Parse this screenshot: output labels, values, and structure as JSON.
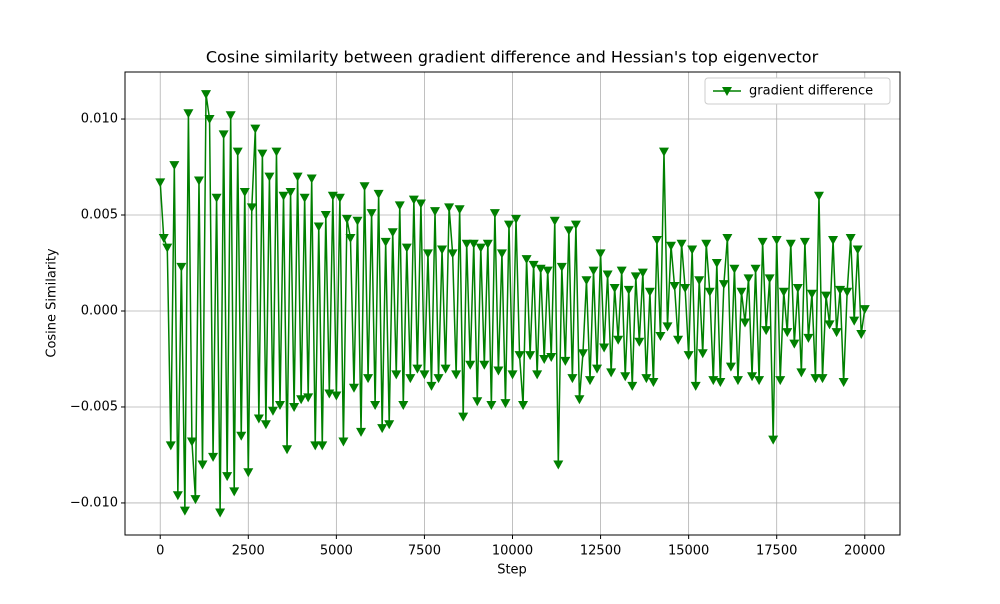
{
  "chart_data": {
    "type": "line",
    "title": "Cosine similarity between gradient difference and Hessian's top eigenvector",
    "x_label": "Step",
    "y_label": "Cosine Similarity",
    "x": [
      0,
      100,
      200,
      300,
      400,
      500,
      600,
      700,
      800,
      900,
      1000,
      1100,
      1200,
      1300,
      1400,
      1500,
      1600,
      1700,
      1800,
      1900,
      2000,
      2100,
      2200,
      2300,
      2400,
      2500,
      2600,
      2700,
      2800,
      2900,
      3000,
      3100,
      3200,
      3300,
      3400,
      3500,
      3600,
      3700,
      3800,
      3900,
      4000,
      4100,
      4200,
      4300,
      4400,
      4500,
      4600,
      4700,
      4800,
      4900,
      5000,
      5100,
      5200,
      5300,
      5400,
      5500,
      5600,
      5700,
      5800,
      5900,
      6000,
      6100,
      6200,
      6300,
      6400,
      6500,
      6600,
      6700,
      6800,
      6900,
      7000,
      7100,
      7200,
      7300,
      7400,
      7500,
      7600,
      7700,
      7800,
      7900,
      8000,
      8100,
      8200,
      8300,
      8400,
      8500,
      8600,
      8700,
      8800,
      8900,
      9000,
      9100,
      9200,
      9300,
      9400,
      9500,
      9600,
      9700,
      9800,
      9900,
      10000,
      10100,
      10200,
      10300,
      10400,
      10500,
      10600,
      10700,
      10800,
      10900,
      11000,
      11100,
      11200,
      11300,
      11400,
      11500,
      11600,
      11700,
      11800,
      11900,
      12000,
      12100,
      12200,
      12300,
      12400,
      12500,
      12600,
      12700,
      12800,
      12900,
      13000,
      13100,
      13200,
      13300,
      13400,
      13500,
      13600,
      13700,
      13800,
      13900,
      14000,
      14100,
      14200,
      14300,
      14400,
      14500,
      14600,
      14700,
      14800,
      14900,
      15000,
      15100,
      15200,
      15300,
      15400,
      15500,
      15600,
      15700,
      15800,
      15900,
      16000,
      16100,
      16200,
      16300,
      16400,
      16500,
      16600,
      16700,
      16800,
      16900,
      17000,
      17100,
      17200,
      17300,
      17400,
      17500,
      17600,
      17700,
      17800,
      17900,
      18000,
      18100,
      18200,
      18300,
      18400,
      18500,
      18600,
      18700,
      18800,
      18900,
      19000,
      19100,
      19200,
      19300,
      19400,
      19500,
      19600,
      19700,
      19800,
      19900,
      20000
    ],
    "series": [
      {
        "name": "gradient difference",
        "color": "#008000",
        "values": [
          0.0067,
          0.0038,
          0.0033,
          -0.007,
          0.0076,
          -0.0096,
          0.0023,
          -0.0104,
          0.0103,
          -0.0068,
          -0.0098,
          0.0068,
          -0.008,
          0.0113,
          0.01,
          -0.0076,
          0.0059,
          -0.0105,
          0.0092,
          -0.0086,
          0.0102,
          -0.0094,
          0.0083,
          -0.0065,
          0.0062,
          -0.0084,
          0.0054,
          0.0095,
          -0.0056,
          0.0082,
          -0.0059,
          0.007,
          -0.0052,
          0.0083,
          -0.0049,
          0.006,
          -0.0072,
          0.0062,
          -0.005,
          0.007,
          -0.0046,
          0.0059,
          -0.0045,
          0.0069,
          -0.007,
          0.0044,
          -0.007,
          0.005,
          -0.0043,
          0.006,
          -0.0044,
          0.0059,
          -0.0068,
          0.0048,
          0.0038,
          -0.004,
          0.0047,
          -0.0063,
          0.0065,
          -0.0035,
          0.0051,
          -0.0049,
          0.0061,
          -0.0061,
          0.0036,
          -0.0059,
          0.0041,
          -0.0033,
          0.0055,
          -0.0049,
          0.0033,
          -0.0035,
          0.0058,
          -0.003,
          0.0056,
          -0.0033,
          0.003,
          -0.0039,
          0.0052,
          -0.0035,
          0.0032,
          -0.003,
          0.0054,
          0.003,
          -0.0033,
          0.0053,
          -0.0055,
          0.0035,
          -0.0028,
          0.0035,
          -0.0047,
          0.0033,
          -0.0028,
          0.0035,
          -0.0049,
          0.0051,
          -0.0031,
          0.003,
          -0.0048,
          0.0045,
          -0.0033,
          0.0048,
          -0.0023,
          -0.0049,
          0.0027,
          -0.0023,
          0.0024,
          -0.0033,
          0.0022,
          -0.0025,
          0.0021,
          -0.0024,
          0.0047,
          -0.008,
          0.0023,
          -0.0026,
          0.0042,
          -0.0035,
          0.0045,
          -0.0046,
          -0.0022,
          0.0016,
          -0.0036,
          0.0021,
          -0.003,
          0.003,
          -0.0019,
          0.0019,
          -0.0032,
          0.0012,
          -0.0015,
          0.0021,
          -0.0034,
          0.0011,
          -0.0039,
          0.0018,
          -0.0016,
          0.002,
          -0.0035,
          0.001,
          -0.0037,
          0.0037,
          -0.0013,
          0.0083,
          -0.0008,
          0.0034,
          0.0013,
          -0.0015,
          0.0035,
          0.0012,
          -0.0023,
          0.0032,
          -0.0039,
          0.0016,
          -0.0022,
          0.0035,
          0.001,
          -0.0036,
          0.0025,
          -0.0037,
          0.0014,
          0.0038,
          -0.0029,
          0.0022,
          -0.0036,
          0.001,
          -0.0006,
          0.0017,
          -0.0034,
          0.0022,
          -0.0036,
          0.0036,
          -0.001,
          0.0017,
          -0.0067,
          0.0037,
          -0.0036,
          0.001,
          -0.0011,
          0.0035,
          -0.0017,
          0.0012,
          -0.0032,
          0.0036,
          -0.0014,
          0.0009,
          -0.0035,
          0.006,
          -0.0035,
          0.0008,
          -0.0007,
          0.0037,
          -0.0011,
          0.0011,
          -0.0037,
          0.001,
          0.0038,
          -0.0005,
          0.0032,
          -0.0012,
          0.0001
        ]
      }
    ],
    "xlim": [
      -1000,
      21000
    ],
    "ylim": [
      -0.01167,
      0.01245
    ],
    "xticks": [
      0,
      2500,
      5000,
      7500,
      10000,
      12500,
      15000,
      17500,
      20000
    ],
    "yticks": [
      {
        "value": -0.01,
        "label": "−0.010"
      },
      {
        "value": -0.005,
        "label": "−0.005"
      },
      {
        "value": 0,
        "label": "0.000"
      },
      {
        "value": 0.005,
        "label": "0.005"
      },
      {
        "value": 0.01,
        "label": "0.010"
      }
    ],
    "grid": true,
    "legend": "upper right"
  }
}
